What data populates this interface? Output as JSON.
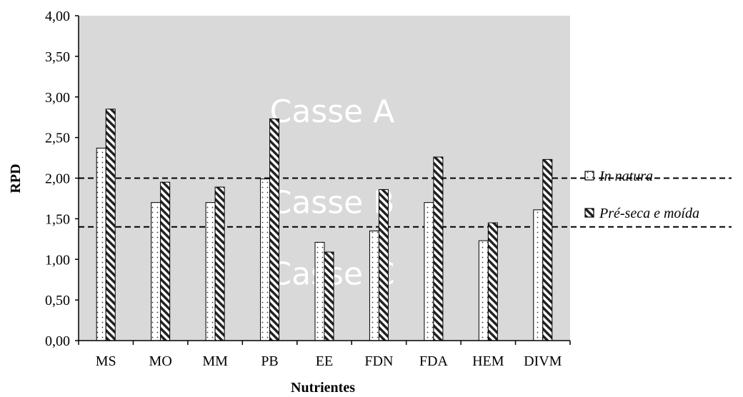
{
  "chart_data": {
    "type": "bar",
    "title": "",
    "xlabel": "Nutrientes",
    "ylabel": "RPD",
    "categories": [
      "MS",
      "MO",
      "MM",
      "PB",
      "EE",
      "FDN",
      "FDA",
      "HEM",
      "DIVM"
    ],
    "series": [
      {
        "name": "In natura",
        "values": [
          2.37,
          1.7,
          1.7,
          1.99,
          1.21,
          1.35,
          1.7,
          1.23,
          1.61
        ],
        "pattern": "dots"
      },
      {
        "name": "Pré-seca e moída",
        "values": [
          2.85,
          1.95,
          1.89,
          2.73,
          1.09,
          1.86,
          2.26,
          1.45,
          2.23
        ],
        "pattern": "hatch"
      }
    ],
    "ylim": [
      0,
      4
    ],
    "yticks": [
      "0,00",
      "0,50",
      "1,00",
      "1,50",
      "2,00",
      "2,50",
      "3,00",
      "3,50",
      "4,00"
    ],
    "reference_lines": [
      {
        "value": 2.0,
        "style": "dashed"
      },
      {
        "value": 1.4,
        "style": "dashed"
      }
    ],
    "annotations": [
      "Casse A",
      "Casse B",
      "Casse C"
    ],
    "legend_position": "right",
    "plot_background": "#d9d9d9",
    "grid": false
  }
}
